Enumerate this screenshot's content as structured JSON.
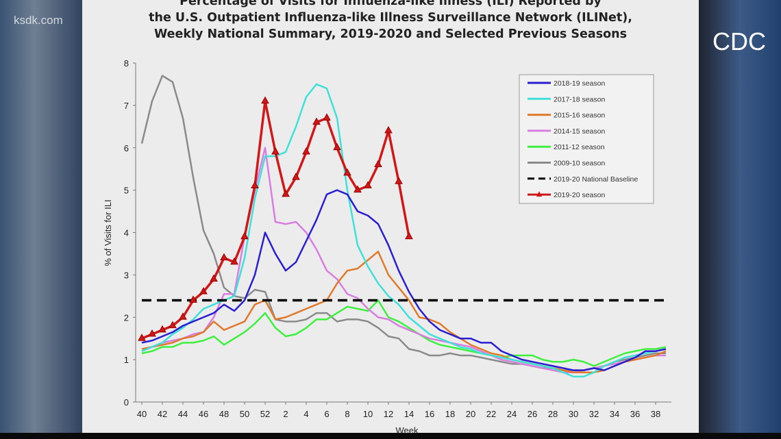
{
  "watermark": "ksdk.com",
  "source_label": "CDC",
  "chart_data": {
    "type": "line",
    "title": [
      "Percentage of Visits for Influenza-like Illness (ILI) Reported by",
      "the U.S. Outpatient Influenza-like Illness Surveillance Network (ILINet),",
      "Weekly National Summary, 2019-2020 and Selected Previous Seasons"
    ],
    "xlabel": "Week",
    "ylabel": "% of Visits for ILI",
    "ylim": [
      0,
      8
    ],
    "yticks": [
      0,
      1,
      2,
      3,
      4,
      5,
      6,
      7,
      8
    ],
    "weeks": [
      40,
      41,
      42,
      43,
      44,
      45,
      46,
      47,
      48,
      49,
      50,
      51,
      52,
      1,
      2,
      3,
      4,
      5,
      6,
      7,
      8,
      9,
      10,
      11,
      12,
      13,
      14,
      15,
      16,
      17,
      18,
      19,
      20,
      21,
      22,
      23,
      24,
      25,
      26,
      27,
      28,
      29,
      30,
      31,
      32,
      33,
      34,
      35,
      36,
      37,
      38,
      39
    ],
    "xticks": [
      40,
      42,
      44,
      46,
      48,
      50,
      52,
      2,
      4,
      6,
      8,
      10,
      12,
      14,
      16,
      18,
      20,
      22,
      24,
      26,
      28,
      30,
      32,
      34,
      36,
      38
    ],
    "grid": false,
    "legend_position": "top-right",
    "series": [
      {
        "name": "2018-19 season",
        "color": "#2a1fd0",
        "values": [
          1.4,
          1.45,
          1.55,
          1.65,
          1.8,
          1.9,
          2.0,
          2.1,
          2.3,
          2.15,
          2.4,
          3.0,
          4.0,
          3.5,
          3.1,
          3.3,
          3.8,
          4.3,
          4.9,
          5.0,
          4.9,
          4.5,
          4.4,
          4.2,
          3.7,
          3.1,
          2.6,
          2.2,
          1.9,
          1.7,
          1.6,
          1.5,
          1.5,
          1.4,
          1.4,
          1.2,
          1.1,
          1.0,
          0.95,
          0.9,
          0.85,
          0.8,
          0.75,
          0.75,
          0.8,
          0.75,
          0.85,
          0.95,
          1.05,
          1.2,
          1.2,
          1.25
        ]
      },
      {
        "name": "2017-18 season",
        "color": "#3fe0d8",
        "values": [
          1.2,
          1.3,
          1.4,
          1.6,
          1.75,
          1.95,
          2.2,
          2.3,
          2.4,
          2.5,
          3.4,
          4.8,
          5.8,
          5.8,
          5.9,
          6.5,
          7.2,
          7.5,
          7.4,
          6.7,
          5.0,
          3.7,
          3.2,
          2.8,
          2.5,
          2.3,
          2.0,
          1.8,
          1.6,
          1.5,
          1.4,
          1.3,
          1.25,
          1.15,
          1.1,
          1.05,
          1.0,
          0.95,
          0.9,
          0.85,
          0.8,
          0.7,
          0.6,
          0.6,
          0.7,
          0.85,
          0.95,
          1.05,
          1.1,
          1.15,
          1.2,
          1.25
        ]
      },
      {
        "name": "2015-16 season",
        "color": "#e07a2a",
        "values": [
          1.25,
          1.3,
          1.35,
          1.4,
          1.5,
          1.55,
          1.65,
          1.9,
          1.7,
          1.8,
          1.9,
          2.3,
          2.4,
          1.95,
          2.0,
          2.1,
          2.2,
          2.3,
          2.4,
          2.8,
          3.1,
          3.15,
          3.35,
          3.55,
          3.0,
          2.7,
          2.4,
          2.0,
          1.95,
          1.85,
          1.65,
          1.5,
          1.35,
          1.25,
          1.15,
          1.1,
          1.0,
          0.95,
          0.9,
          0.85,
          0.8,
          0.75,
          0.7,
          0.7,
          0.7,
          0.75,
          0.85,
          0.95,
          1.0,
          1.05,
          1.1,
          1.2
        ]
      },
      {
        "name": "2014-15 season",
        "color": "#d77ee0",
        "values": [
          1.2,
          1.3,
          1.4,
          1.45,
          1.5,
          1.6,
          1.65,
          2.0,
          2.55,
          2.55,
          3.9,
          5.0,
          6.0,
          4.25,
          4.2,
          4.25,
          4.0,
          3.6,
          3.1,
          2.9,
          2.55,
          2.45,
          2.2,
          2.0,
          1.95,
          1.8,
          1.7,
          1.6,
          1.5,
          1.45,
          1.4,
          1.35,
          1.3,
          1.2,
          1.1,
          1.0,
          0.95,
          0.9,
          0.85,
          0.8,
          0.75,
          0.7,
          0.7,
          0.75,
          0.8,
          0.85,
          0.9,
          0.95,
          1.0,
          1.05,
          1.1,
          1.1
        ]
      },
      {
        "name": "2011-12 season",
        "color": "#3ef03e",
        "values": [
          1.15,
          1.2,
          1.3,
          1.3,
          1.4,
          1.4,
          1.45,
          1.55,
          1.35,
          1.5,
          1.65,
          1.85,
          2.1,
          1.75,
          1.55,
          1.6,
          1.75,
          1.95,
          1.95,
          2.1,
          2.25,
          2.2,
          2.15,
          2.4,
          2.0,
          1.9,
          1.75,
          1.6,
          1.45,
          1.35,
          1.3,
          1.25,
          1.2,
          1.15,
          1.1,
          1.05,
          1.1,
          1.1,
          1.1,
          1.0,
          0.95,
          0.95,
          1.0,
          0.95,
          0.85,
          0.95,
          1.05,
          1.15,
          1.2,
          1.25,
          1.25,
          1.3
        ]
      },
      {
        "name": "2009-10 season",
        "color": "#8a8a8a",
        "values": [
          6.1,
          7.1,
          7.7,
          7.55,
          6.7,
          5.3,
          4.05,
          3.5,
          2.7,
          2.5,
          2.45,
          2.65,
          2.6,
          1.95,
          1.9,
          1.9,
          1.95,
          2.1,
          2.1,
          1.9,
          1.95,
          1.95,
          1.9,
          1.75,
          1.55,
          1.5,
          1.25,
          1.2,
          1.1,
          1.1,
          1.15,
          1.1,
          1.1,
          1.05,
          1.0,
          0.95,
          0.9,
          0.9,
          0.85,
          0.8,
          0.8,
          0.75,
          0.75,
          0.75,
          0.8,
          0.85,
          0.95,
          1.0,
          1.05,
          1.1,
          1.15,
          1.15
        ]
      },
      {
        "name": "2019-20 National Baseline",
        "color": "#000000",
        "dashed": true,
        "constant": 2.4
      },
      {
        "name": "2019-20 season",
        "color": "#d01818",
        "marker": "triangle",
        "values": [
          1.5,
          1.6,
          1.7,
          1.8,
          2.0,
          2.4,
          2.6,
          2.9,
          3.4,
          3.3,
          3.9,
          5.1,
          7.1,
          5.9,
          4.9,
          5.3,
          5.9,
          6.6,
          6.7,
          6.0,
          5.4,
          5.0,
          5.1,
          5.6,
          6.4,
          5.2,
          3.9
        ]
      }
    ]
  }
}
